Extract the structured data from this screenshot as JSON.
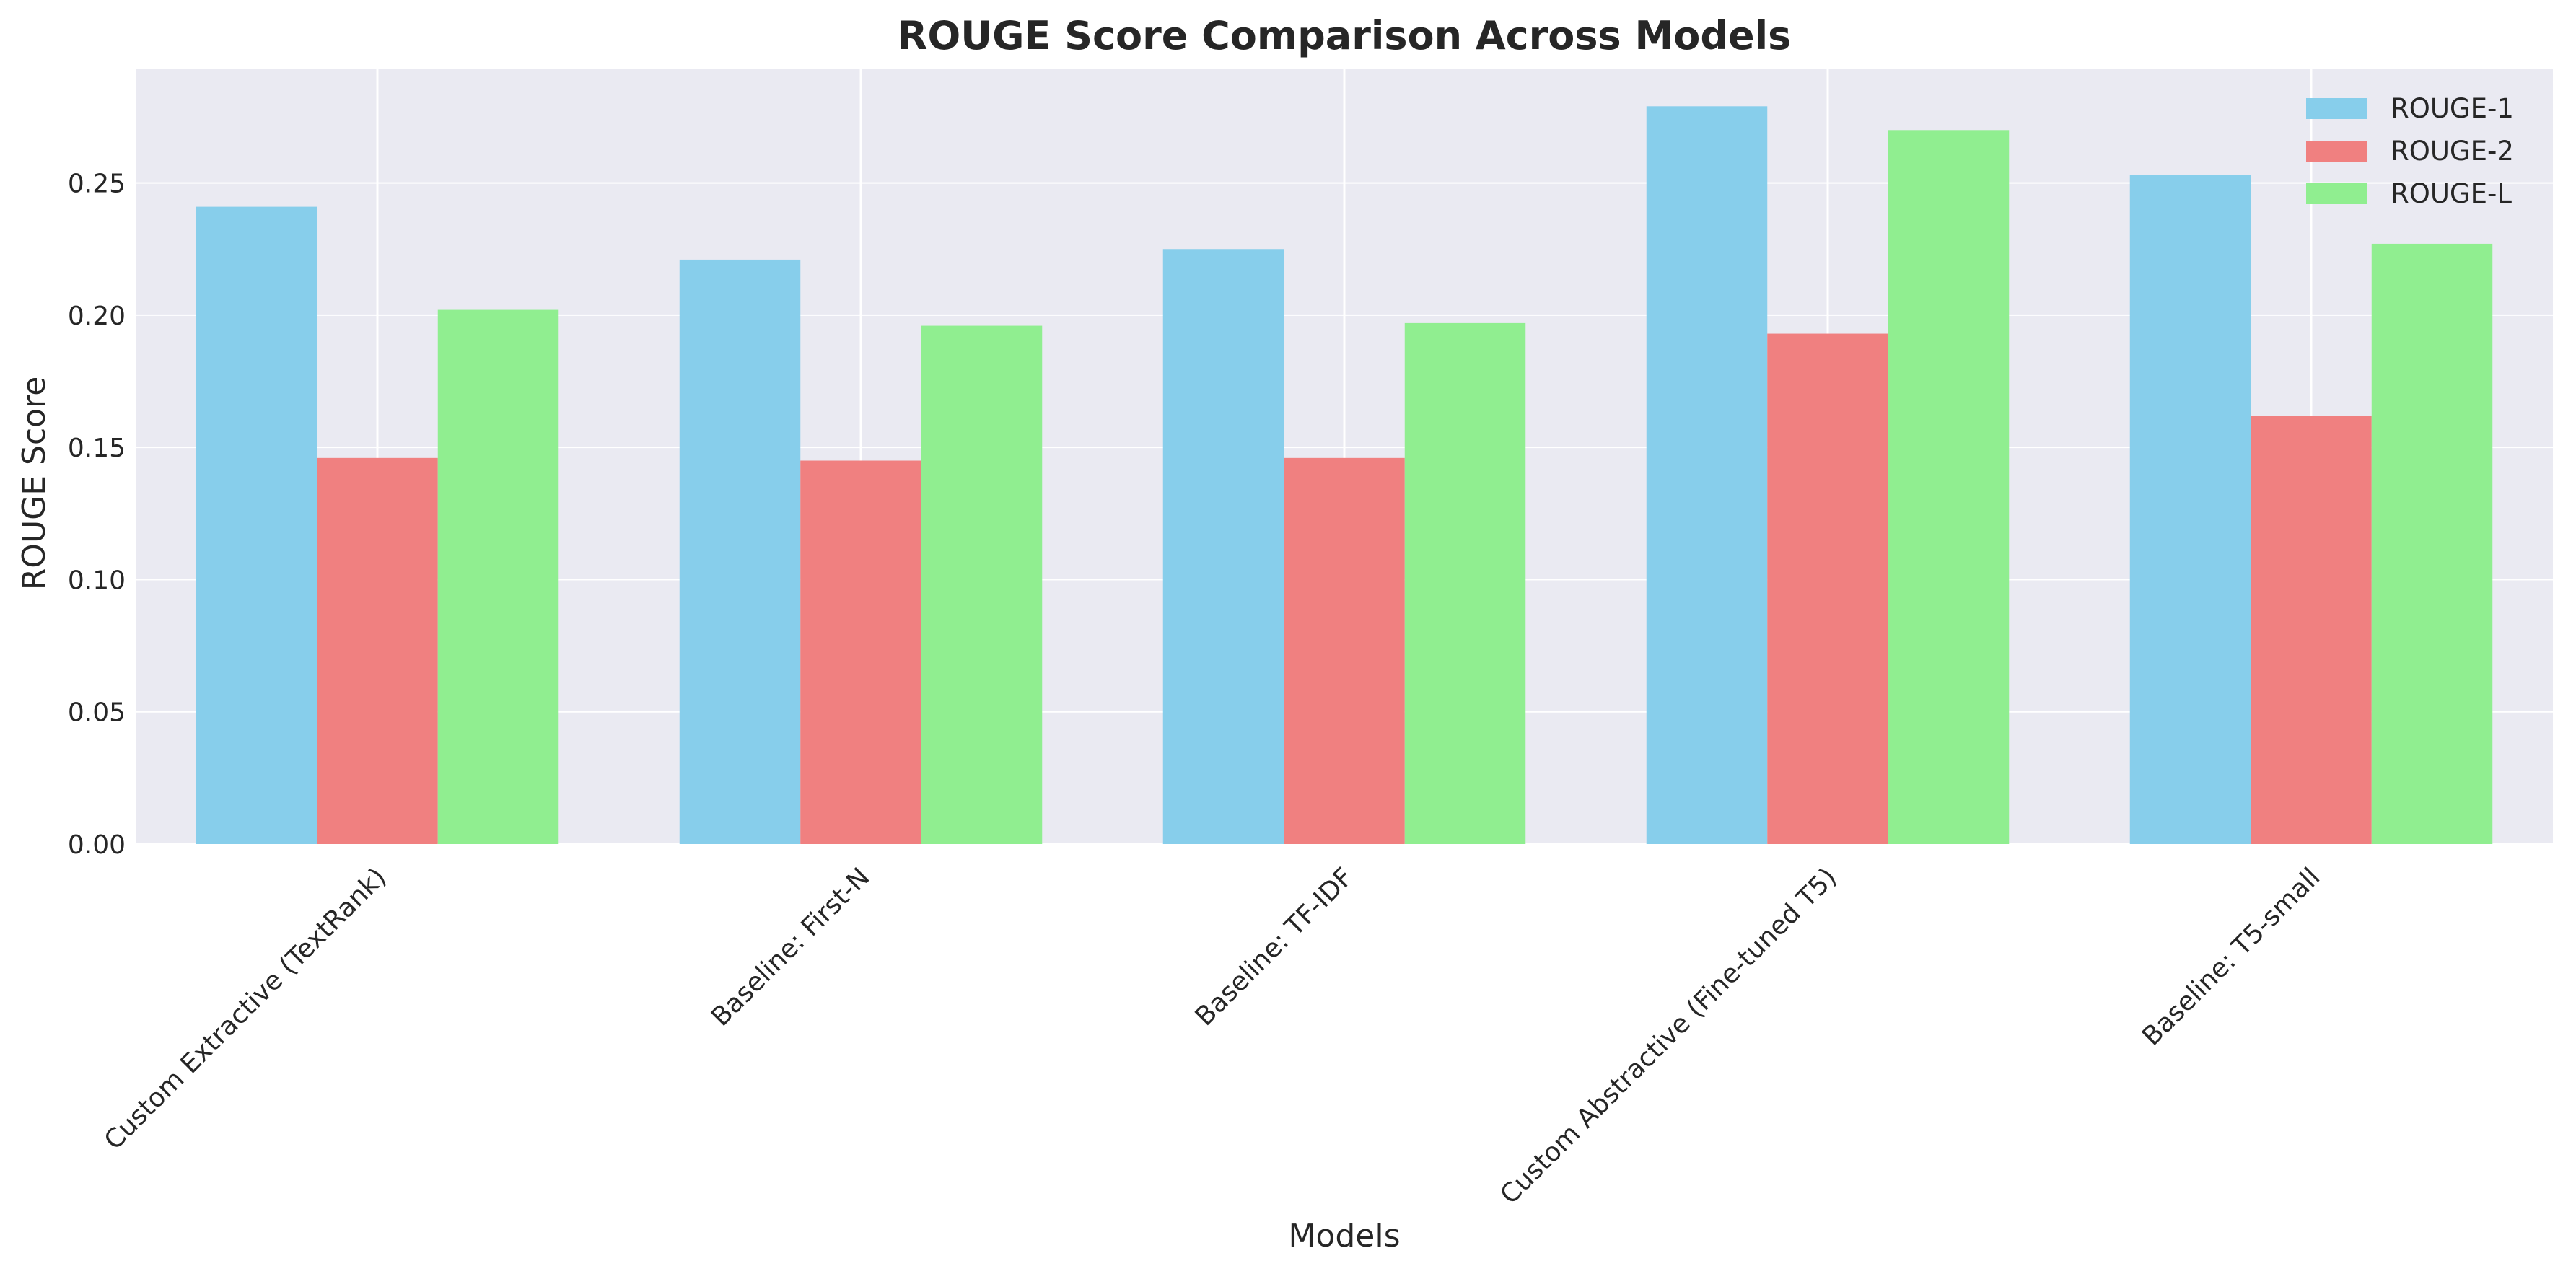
{
  "chart_data": {
    "type": "bar",
    "title": "ROUGE Score Comparison Across Models",
    "xlabel": "Models",
    "ylabel": "ROUGE Score",
    "ylim": [
      0,
      0.293
    ],
    "yticks": [
      "0.00",
      "0.05",
      "0.10",
      "0.15",
      "0.20",
      "0.25"
    ],
    "grid": true,
    "legend_position": "top-right",
    "categories": [
      "Custom Extractive (TextRank)",
      "Baseline: First-N",
      "Baseline: TF-IDF",
      "Custom Abstractive (Fine-tuned T5)",
      "Baseline: T5-small"
    ],
    "series": [
      {
        "name": "ROUGE-1",
        "color": "#87ceeb",
        "values": [
          0.241,
          0.221,
          0.225,
          0.279,
          0.253
        ]
      },
      {
        "name": "ROUGE-2",
        "color": "#f08080",
        "values": [
          0.146,
          0.145,
          0.146,
          0.193,
          0.162
        ]
      },
      {
        "name": "ROUGE-L",
        "color": "#90ee90",
        "values": [
          0.202,
          0.196,
          0.197,
          0.27,
          0.227
        ]
      }
    ],
    "colors": {
      "plot_background": "#eaeaf2",
      "grid": "#ffffff",
      "text": "#262626"
    }
  }
}
